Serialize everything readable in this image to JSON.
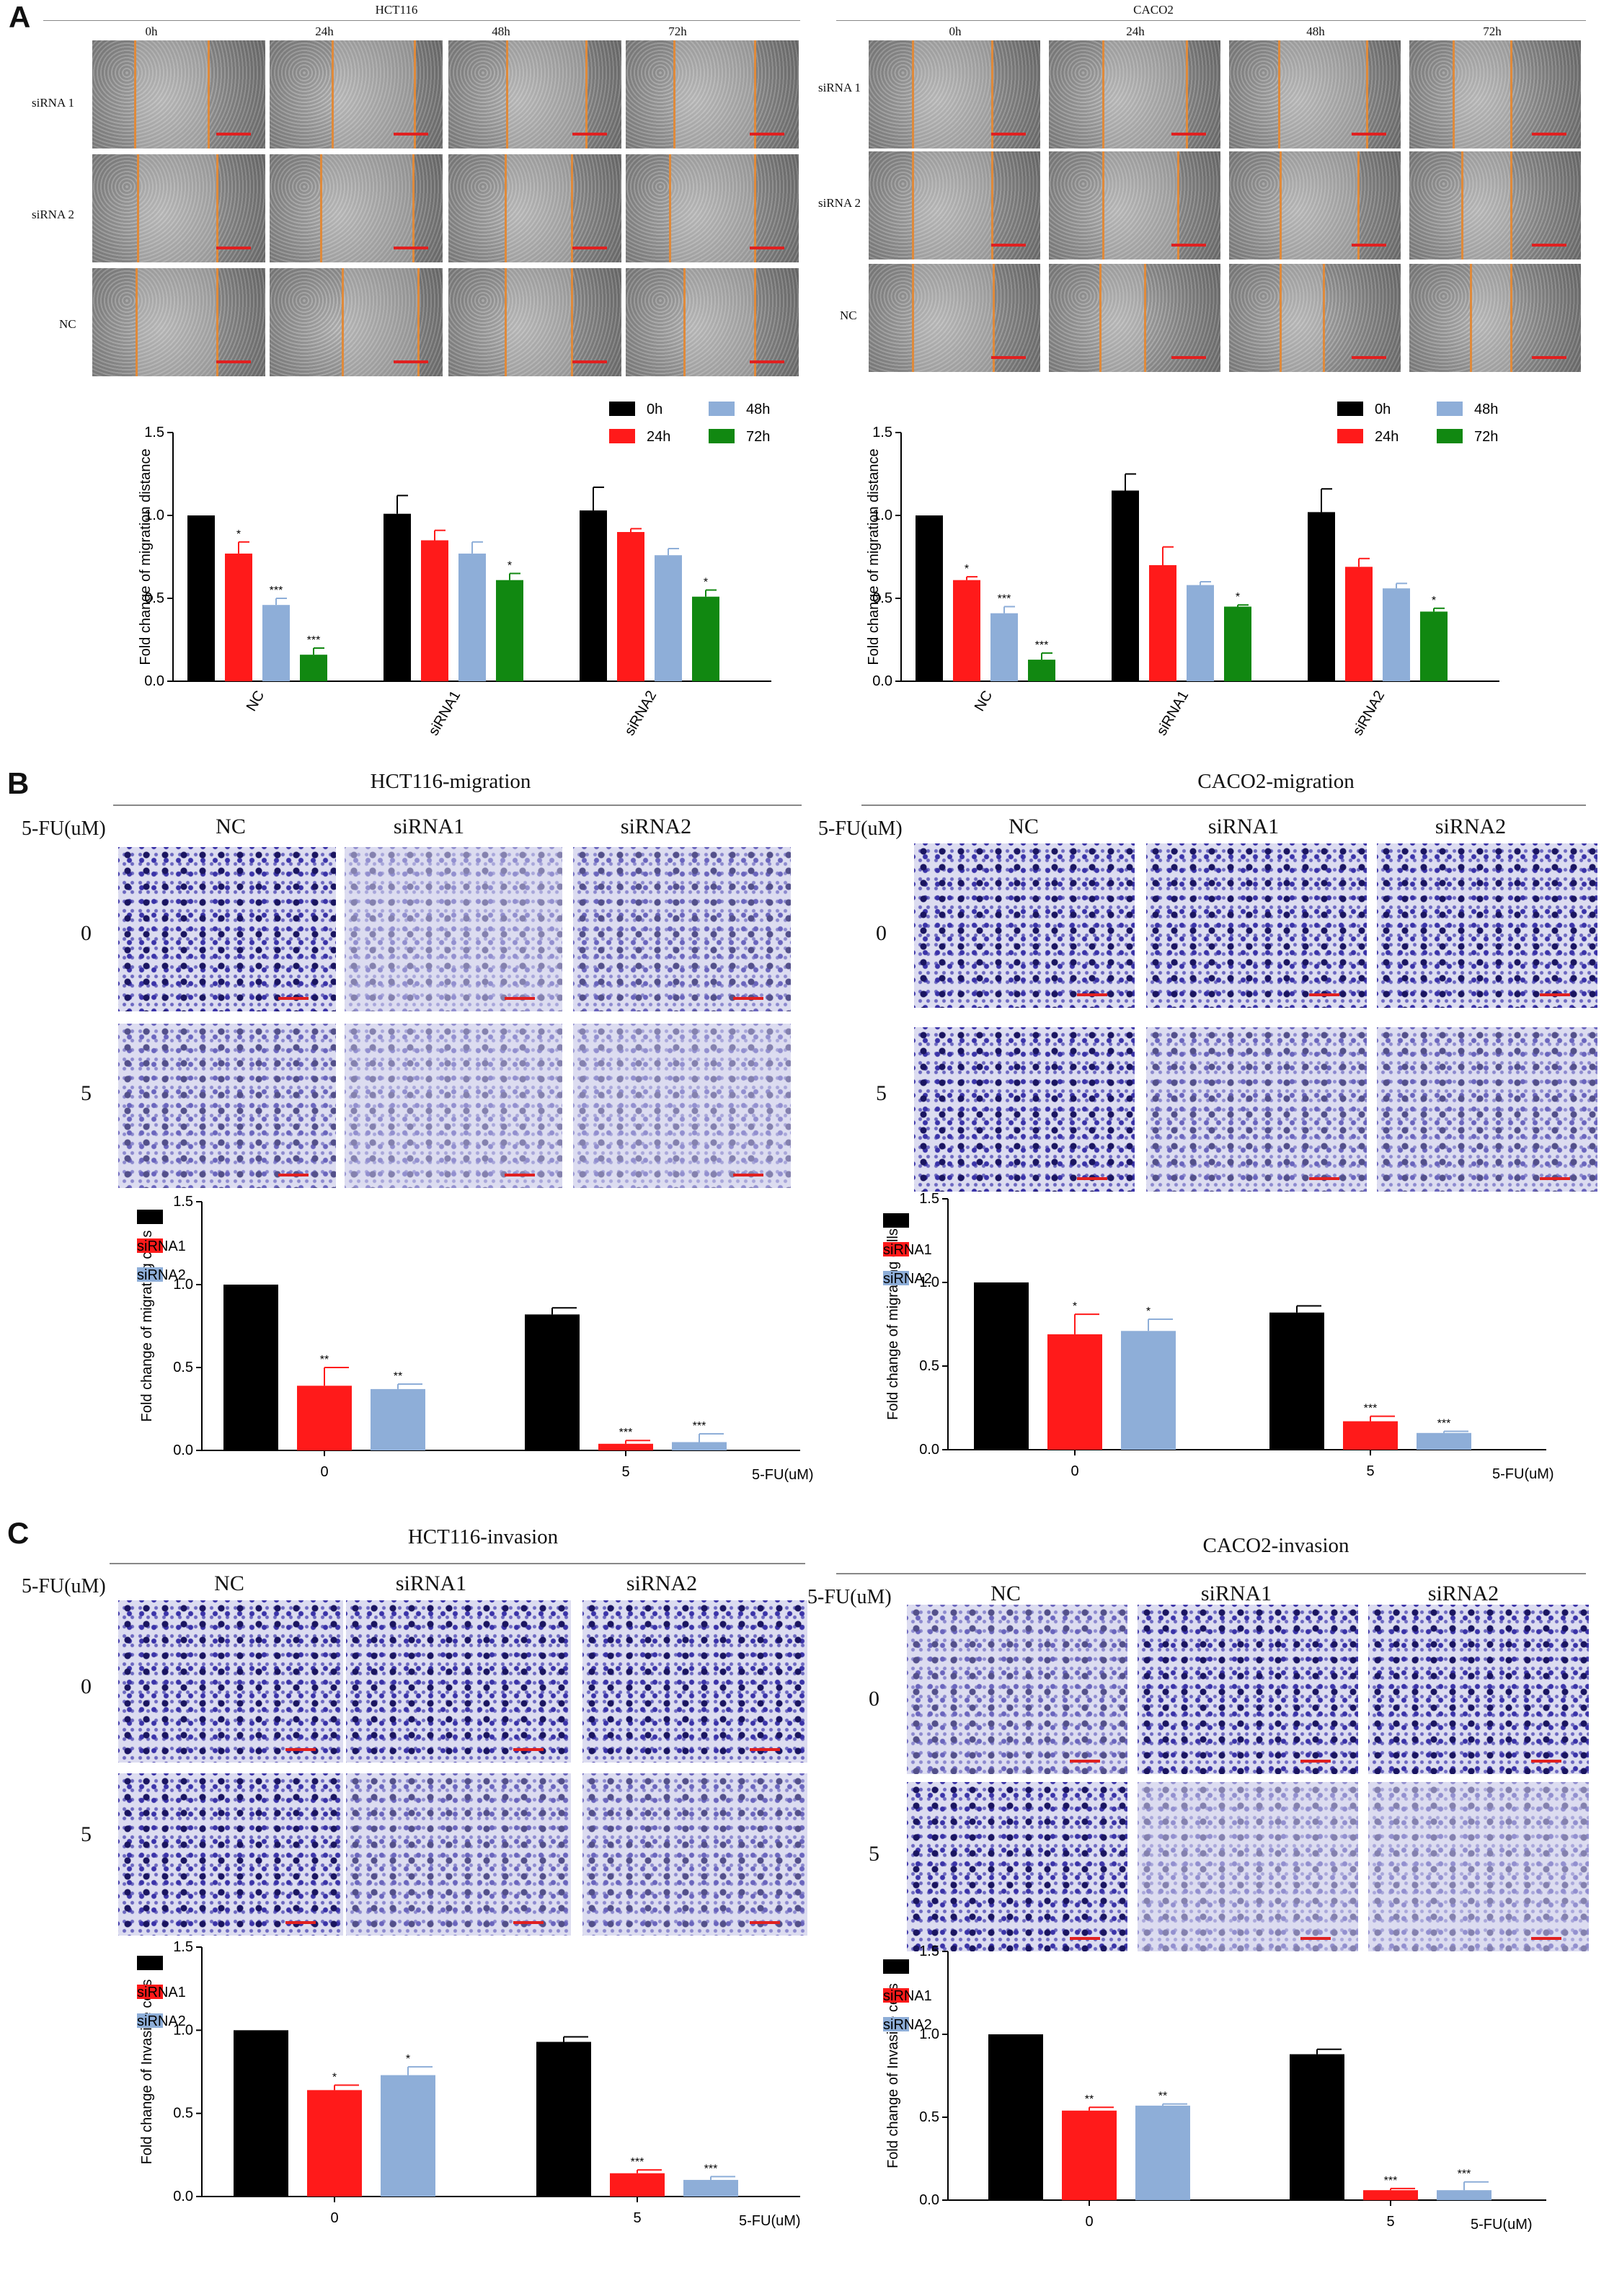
{
  "panels": {
    "A": "A",
    "B": "B",
    "C": "C"
  },
  "panelA": {
    "left": {
      "title": "HCT116",
      "timepoints": [
        "0h",
        "24h",
        "48h",
        "72h"
      ],
      "rows": [
        "siRNA 1",
        "siRNA 2",
        "NC"
      ]
    },
    "right": {
      "title": "CACO2",
      "timepoints": [
        "0h",
        "24h",
        "48h",
        "72h"
      ],
      "rows": [
        "siRNA 1",
        "siRNA 2",
        "NC"
      ]
    }
  },
  "panelB": {
    "left": {
      "title": "HCT116-migration",
      "treatment": "5-FU(uM)",
      "cols": [
        "NC",
        "siRNA1",
        "siRNA2"
      ],
      "rows": [
        "0",
        "5"
      ]
    },
    "right": {
      "title": "CACO2-migration",
      "treatment": "5-FU(uM)",
      "cols": [
        "NC",
        "siRNA1",
        "siRNA2"
      ],
      "rows": [
        "0",
        "5"
      ]
    }
  },
  "panelC": {
    "left": {
      "title": "HCT116-invasion",
      "treatment": "5-FU(uM)",
      "cols": [
        "NC",
        "siRNA1",
        "siRNA2"
      ],
      "rows": [
        "0",
        "5"
      ]
    },
    "right": {
      "title": "CACO2-invasion",
      "treatment": "5-FU(uM)",
      "cols": [
        "NC",
        "siRNA1",
        "siRNA2"
      ],
      "rows": [
        "0",
        "5"
      ]
    }
  },
  "colors": {
    "black": "#000000",
    "red": "#ff1a1a",
    "blue": "#8eaed8",
    "green": "#118811"
  },
  "chart_data": [
    {
      "id": "A-left",
      "type": "bar",
      "ylabel": "Fold change of migration distance",
      "ylim": [
        0,
        1.5
      ],
      "yticks": [
        "0.0",
        "0.5",
        "1.0",
        "1.5"
      ],
      "categories": [
        "NC",
        "siRNA1",
        "siRNA2"
      ],
      "x_rotated": true,
      "legend_position": "top-right",
      "series": [
        {
          "name": "0h",
          "color": "#000000",
          "values": [
            1.0,
            1.01,
            1.03
          ],
          "err": [
            0.0,
            0.11,
            0.14
          ],
          "sig": [
            "",
            "",
            ""
          ]
        },
        {
          "name": "24h",
          "color": "#ff1a1a",
          "values": [
            0.77,
            0.85,
            0.9
          ],
          "err": [
            0.07,
            0.06,
            0.02
          ],
          "sig": [
            "*",
            "",
            ""
          ]
        },
        {
          "name": "48h",
          "color": "#8eaed8",
          "values": [
            0.46,
            0.77,
            0.76
          ],
          "err": [
            0.04,
            0.07,
            0.04
          ],
          "sig": [
            "***",
            "",
            ""
          ]
        },
        {
          "name": "72h",
          "color": "#118811",
          "values": [
            0.16,
            0.61,
            0.51
          ],
          "err": [
            0.04,
            0.04,
            0.04
          ],
          "sig": [
            "***",
            "*",
            "*"
          ]
        }
      ],
      "xlabel_suffix": ""
    },
    {
      "id": "A-right",
      "type": "bar",
      "ylabel": "Fold change of migration distance",
      "ylim": [
        0,
        1.5
      ],
      "yticks": [
        "0.0",
        "0.5",
        "1.0",
        "1.5"
      ],
      "categories": [
        "NC",
        "siRNA1",
        "siRNA2"
      ],
      "x_rotated": true,
      "legend_position": "top-right",
      "series": [
        {
          "name": "0h",
          "color": "#000000",
          "values": [
            1.0,
            1.15,
            1.02
          ],
          "err": [
            0.0,
            0.1,
            0.14
          ],
          "sig": [
            "",
            "",
            ""
          ]
        },
        {
          "name": "24h",
          "color": "#ff1a1a",
          "values": [
            0.61,
            0.7,
            0.69
          ],
          "err": [
            0.02,
            0.11,
            0.05
          ],
          "sig": [
            "*",
            "",
            ""
          ]
        },
        {
          "name": "48h",
          "color": "#8eaed8",
          "values": [
            0.41,
            0.58,
            0.56
          ],
          "err": [
            0.04,
            0.02,
            0.03
          ],
          "sig": [
            "***",
            "",
            ""
          ]
        },
        {
          "name": "72h",
          "color": "#118811",
          "values": [
            0.13,
            0.45,
            0.42
          ],
          "err": [
            0.04,
            0.01,
            0.02
          ],
          "sig": [
            "***",
            "*",
            "*"
          ]
        }
      ],
      "xlabel_suffix": ""
    },
    {
      "id": "B-left",
      "type": "bar",
      "ylabel": "Fold change of migrating cells",
      "ylim": [
        0,
        1.5
      ],
      "yticks": [
        "0.0",
        "0.5",
        "1.0",
        "1.5"
      ],
      "categories": [
        "0",
        "5"
      ],
      "x_rotated": false,
      "legend_position": "top-right",
      "series": [
        {
          "name": "NC",
          "color": "#000000",
          "values": [
            1.0,
            0.82
          ],
          "err": [
            0.0,
            0.04
          ],
          "sig": [
            "",
            ""
          ]
        },
        {
          "name": "siRNA1",
          "color": "#ff1a1a",
          "values": [
            0.39,
            0.04
          ],
          "err": [
            0.11,
            0.02
          ],
          "sig": [
            "**",
            "***"
          ]
        },
        {
          "name": "siRNA2",
          "color": "#8eaed8",
          "values": [
            0.37,
            0.05
          ],
          "err": [
            0.03,
            0.05
          ],
          "sig": [
            "**",
            "***"
          ]
        }
      ],
      "xlabel_suffix": "5-FU(uM)"
    },
    {
      "id": "B-right",
      "type": "bar",
      "ylabel": "Fold change of migrating cells",
      "ylim": [
        0,
        1.5
      ],
      "yticks": [
        "0.0",
        "0.5",
        "1.0",
        "1.5"
      ],
      "categories": [
        "0",
        "5"
      ],
      "x_rotated": false,
      "legend_position": "top-right",
      "series": [
        {
          "name": "NC",
          "color": "#000000",
          "values": [
            1.0,
            0.82
          ],
          "err": [
            0.0,
            0.04
          ],
          "sig": [
            "",
            ""
          ]
        },
        {
          "name": "siRNA1",
          "color": "#ff1a1a",
          "values": [
            0.69,
            0.17
          ],
          "err": [
            0.12,
            0.03
          ],
          "sig": [
            "*",
            "***"
          ]
        },
        {
          "name": "siRNA2",
          "color": "#8eaed8",
          "values": [
            0.71,
            0.1
          ],
          "err": [
            0.07,
            0.01
          ],
          "sig": [
            "*",
            "***"
          ]
        }
      ],
      "xlabel_suffix": "5-FU(uM)"
    },
    {
      "id": "C-left",
      "type": "bar",
      "ylabel": "Fold change of Invasive cells",
      "ylim": [
        0,
        1.5
      ],
      "yticks": [
        "0.0",
        "0.5",
        "1.0",
        "1.5"
      ],
      "categories": [
        "0",
        "5"
      ],
      "x_rotated": false,
      "legend_position": "top-right",
      "series": [
        {
          "name": "NC",
          "color": "#000000",
          "values": [
            1.0,
            0.93
          ],
          "err": [
            0.0,
            0.03
          ],
          "sig": [
            "",
            ""
          ]
        },
        {
          "name": "siRNA1",
          "color": "#ff1a1a",
          "values": [
            0.64,
            0.14
          ],
          "err": [
            0.03,
            0.02
          ],
          "sig": [
            "*",
            "***"
          ]
        },
        {
          "name": "siRNA2",
          "color": "#8eaed8",
          "values": [
            0.73,
            0.1
          ],
          "err": [
            0.05,
            0.02
          ],
          "sig": [
            "*",
            "***"
          ]
        }
      ],
      "xlabel_suffix": "5-FU(uM)"
    },
    {
      "id": "C-right",
      "type": "bar",
      "ylabel": "Fold change of Invasive cells",
      "ylim": [
        0,
        1.5
      ],
      "yticks": [
        "0.0",
        "0.5",
        "1.0",
        "1.5"
      ],
      "categories": [
        "0",
        "5"
      ],
      "x_rotated": false,
      "legend_position": "top-right",
      "series": [
        {
          "name": "NC",
          "color": "#000000",
          "values": [
            1.0,
            0.88
          ],
          "err": [
            0.0,
            0.03
          ],
          "sig": [
            "",
            ""
          ]
        },
        {
          "name": "siRNA1",
          "color": "#ff1a1a",
          "values": [
            0.54,
            0.06
          ],
          "err": [
            0.02,
            0.01
          ],
          "sig": [
            "**",
            "***"
          ]
        },
        {
          "name": "siRNA2",
          "color": "#8eaed8",
          "values": [
            0.57,
            0.06
          ],
          "err": [
            0.01,
            0.05
          ],
          "sig": [
            "**",
            "***"
          ]
        }
      ],
      "xlabel_suffix": "5-FU(uM)"
    }
  ]
}
